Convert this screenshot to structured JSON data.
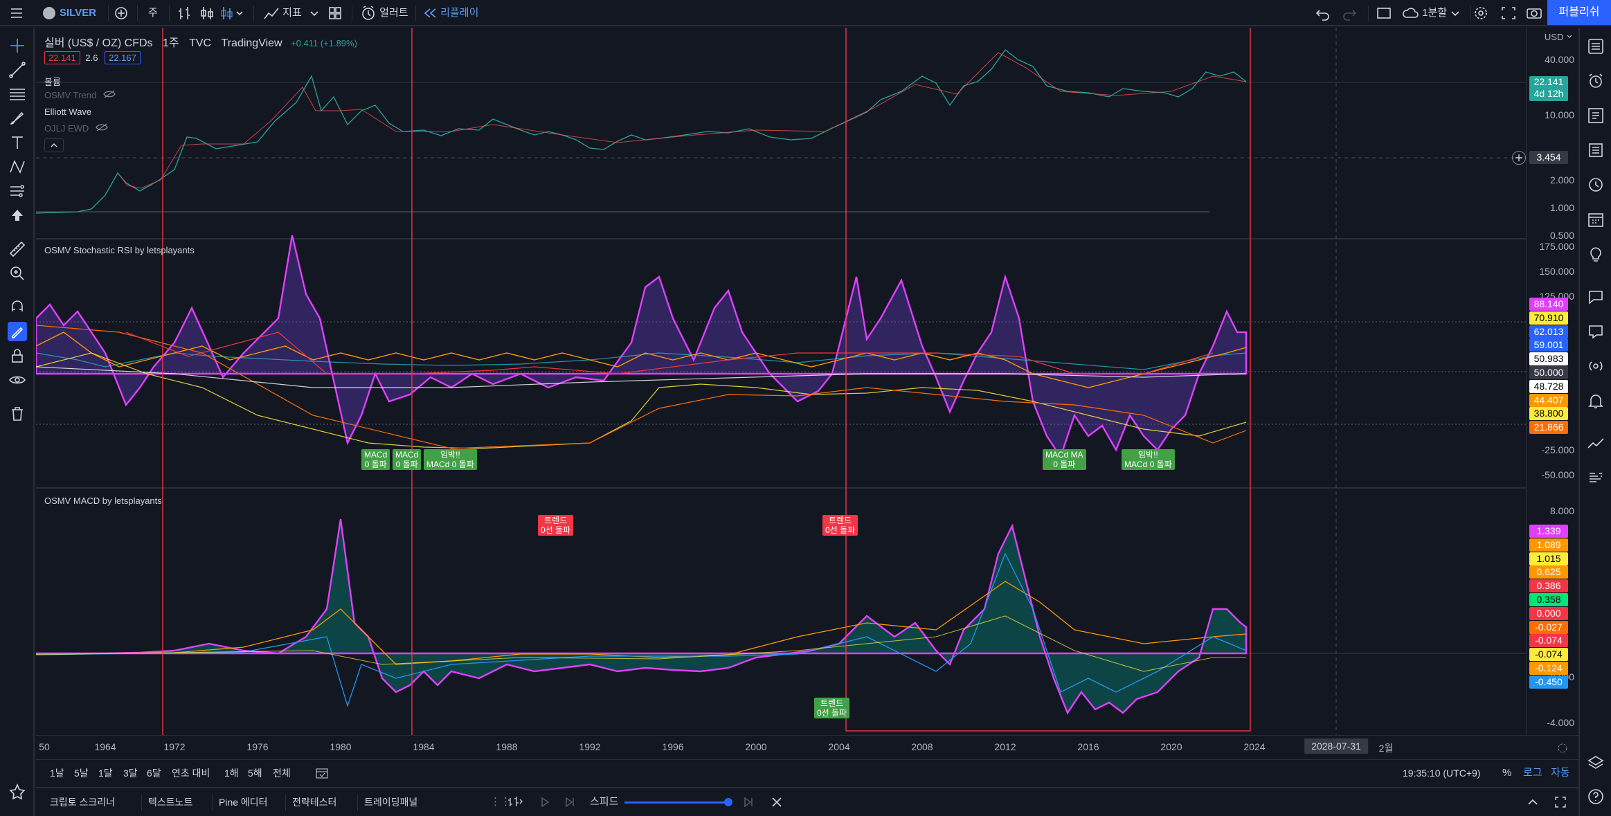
{
  "topbar": {
    "symbol": "SILVER",
    "interval": "주",
    "indicators_label": "지표",
    "alert_label": "얼러트",
    "replay_label": "리플레이",
    "layout_label": "1분할",
    "publish_label": "퍼블리쉬"
  },
  "legend": {
    "title": "실버 (US$ / OZ) CFDs",
    "interval": "1주",
    "exchange": "TVC",
    "provider": "TradingView",
    "change": "+0.411 (+1.89%)",
    "bid": "22.141",
    "spread": "2.6",
    "ask": "22.167",
    "volume_label": "볼륨",
    "trend_label": "OSMV Trend",
    "elliott_label": "Elliott Wave",
    "ewd_label": "OJLJ EWD"
  },
  "panes": {
    "stoch_title": "OSMV Stochastic RSI by letsplayants",
    "macd_title": "OSMV MACD by letsplayants"
  },
  "price_axis": {
    "currency": "USD",
    "main_ticks": [
      "40.000",
      "10.000",
      "2.000",
      "1.000",
      "0.500"
    ],
    "main_tags": [
      {
        "value": "22.141",
        "sub": "4d 12h",
        "color": "#26a69a"
      },
      {
        "value": "3.454",
        "color": "#363a45"
      }
    ],
    "stoch_ticks": [
      "175.000",
      "150.000",
      "125.000",
      "-25.000",
      "-50.000"
    ],
    "stoch_tags": [
      {
        "value": "88.140",
        "color": "#e040fb"
      },
      {
        "value": "70.910",
        "color": "#ffeb3b",
        "text": "#000"
      },
      {
        "value": "62.013",
        "color": "#2962ff"
      },
      {
        "value": "59.001",
        "color": "#2962ff"
      },
      {
        "value": "50.983",
        "color": "#ffffff",
        "text": "#000"
      },
      {
        "value": "50.000",
        "color": "#363a45"
      },
      {
        "value": "48.728",
        "color": "#ffffff",
        "text": "#000"
      },
      {
        "value": "44.407",
        "color": "#ff9800"
      },
      {
        "value": "38.800",
        "color": "#ffeb3b",
        "text": "#000"
      },
      {
        "value": "21.866",
        "color": "#ff6d00"
      }
    ],
    "macd_ticks": [
      "8.000",
      "2.000",
      "-4.000"
    ],
    "macd_tags": [
      {
        "value": "1.339",
        "color": "#e040fb"
      },
      {
        "value": "1.089",
        "color": "#ff9800"
      },
      {
        "value": "1.015",
        "color": "#ffeb3b",
        "text": "#000"
      },
      {
        "value": "0.625",
        "color": "#ff9800"
      },
      {
        "value": "0.386",
        "color": "#f23645"
      },
      {
        "value": "0.358",
        "color": "#00e676",
        "text": "#000"
      },
      {
        "value": "0.000",
        "color": "#f23645"
      },
      {
        "value": "-0.027",
        "color": "#ff6d00"
      },
      {
        "value": "-0.074",
        "color": "#f23645"
      },
      {
        "value": "-0.074",
        "color": "#ffeb3b",
        "text": "#000"
      },
      {
        "value": "-0.124",
        "color": "#ff9800"
      },
      {
        "value": "-0.450",
        "color": "#2196f3"
      }
    ]
  },
  "time_axis": {
    "labels": [
      "50",
      "1964",
      "1972",
      "1976",
      "1980",
      "1984",
      "1988",
      "1992",
      "1996",
      "2000",
      "2004",
      "2008",
      "2012",
      "2016",
      "2020",
      "2024",
      "2월"
    ],
    "cursor_date": "2028-07-31"
  },
  "annotations": {
    "macd_cross": "MACd\n0 돌파",
    "macd_cross_b": "MACd\n0 돌파",
    "momentum": "임박!!\nMACd 0 돌파",
    "trend_break": "트렌드\n0선 돌파",
    "trend_break_b": "트렌드\n0선 돌파",
    "trend_break_c": "트렌드\n0선 돌파",
    "cluster": "MACd MA\n0 돌파",
    "momentum_b": "임박!!\nMACd 0 돌파"
  },
  "rangebar": {
    "ranges": [
      "1날",
      "5날",
      "1달",
      "3달",
      "6달",
      "연초 대비",
      "1해",
      "5해",
      "전체"
    ],
    "clock": "19:35:10 (UTC+9)",
    "percent": "%",
    "log": "로그",
    "auto": "자동"
  },
  "panelbar": {
    "tabs": [
      "크립토 스크리너",
      "텍스트노트",
      "Pine 에디터",
      "전략테스터",
      "트레이딩패널"
    ],
    "speed_label": "스피드"
  }
}
